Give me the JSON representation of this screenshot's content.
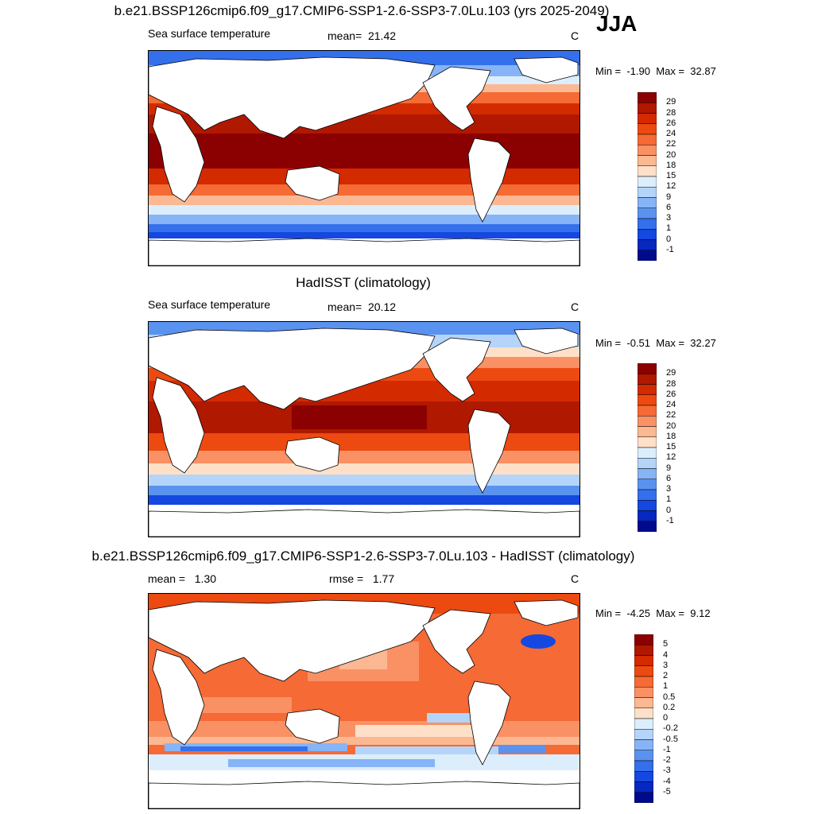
{
  "season": "JJA",
  "panels": [
    {
      "title": "b.e21.BSSP126cmip6.f09_g17.CMIP6-SSP1-2.6-SSP3-7.0Lu.103 (yrs 2025-2049)",
      "left_label": "Sea surface temperature",
      "stat1_label": "mean=",
      "stat1_value": "21.42",
      "stat2_label": "",
      "stat2_value": "",
      "units": "C",
      "min_label": "Min =",
      "min_value": "-1.90",
      "max_label": "Max =",
      "max_value": "32.87",
      "kind": "abs"
    },
    {
      "title": "HadISST (climatology)",
      "left_label": "Sea surface temperature",
      "stat1_label": "mean=",
      "stat1_value": "20.12",
      "stat2_label": "",
      "stat2_value": "",
      "units": "C",
      "min_label": "Min =",
      "min_value": "-0.51",
      "max_label": "Max =",
      "max_value": "32.27",
      "kind": "abs"
    },
    {
      "title": "b.e21.BSSP126cmip6.f09_g17.CMIP6-SSP1-2.6-SSP3-7.0Lu.103 - HadISST (climatology)",
      "left_label": "",
      "stat1_label": "mean =",
      "stat1_value": "1.30",
      "stat2_label": "rmse =",
      "stat2_value": "1.77",
      "units": "C",
      "min_label": "Min =",
      "min_value": "-4.25",
      "max_label": "Max =",
      "max_value": "9.12",
      "kind": "diff"
    }
  ],
  "chart_data": {
    "type": "heatmap",
    "colorbar_abs": {
      "levels": [
        "29",
        "28",
        "26",
        "24",
        "22",
        "20",
        "18",
        "15",
        "12",
        "9",
        "6",
        "3",
        "1",
        "0",
        "-1"
      ],
      "colors": [
        "#8b0000",
        "#b01800",
        "#d42a00",
        "#ec4a10",
        "#f56a35",
        "#fa9164",
        "#fcb892",
        "#fee0c8",
        "#dceefc",
        "#b4d4fa",
        "#86b4f6",
        "#5a92f0",
        "#3470ec",
        "#1448e0",
        "#0628c0",
        "#000a8c"
      ]
    },
    "colorbar_diff": {
      "levels": [
        "5",
        "4",
        "3",
        "2",
        "1",
        "0.5",
        "0.2",
        "0",
        "-0.2",
        "-0.5",
        "-1",
        "-2",
        "-3",
        "-4",
        "-5"
      ],
      "colors": [
        "#8b0000",
        "#b01800",
        "#d42a00",
        "#ec4a10",
        "#f56a35",
        "#fa9164",
        "#fcb892",
        "#fee0c8",
        "#dceefc",
        "#b4d4fa",
        "#86b4f6",
        "#5a92f0",
        "#3470ec",
        "#1448e0",
        "#0628c0",
        "#000a8c"
      ]
    }
  }
}
